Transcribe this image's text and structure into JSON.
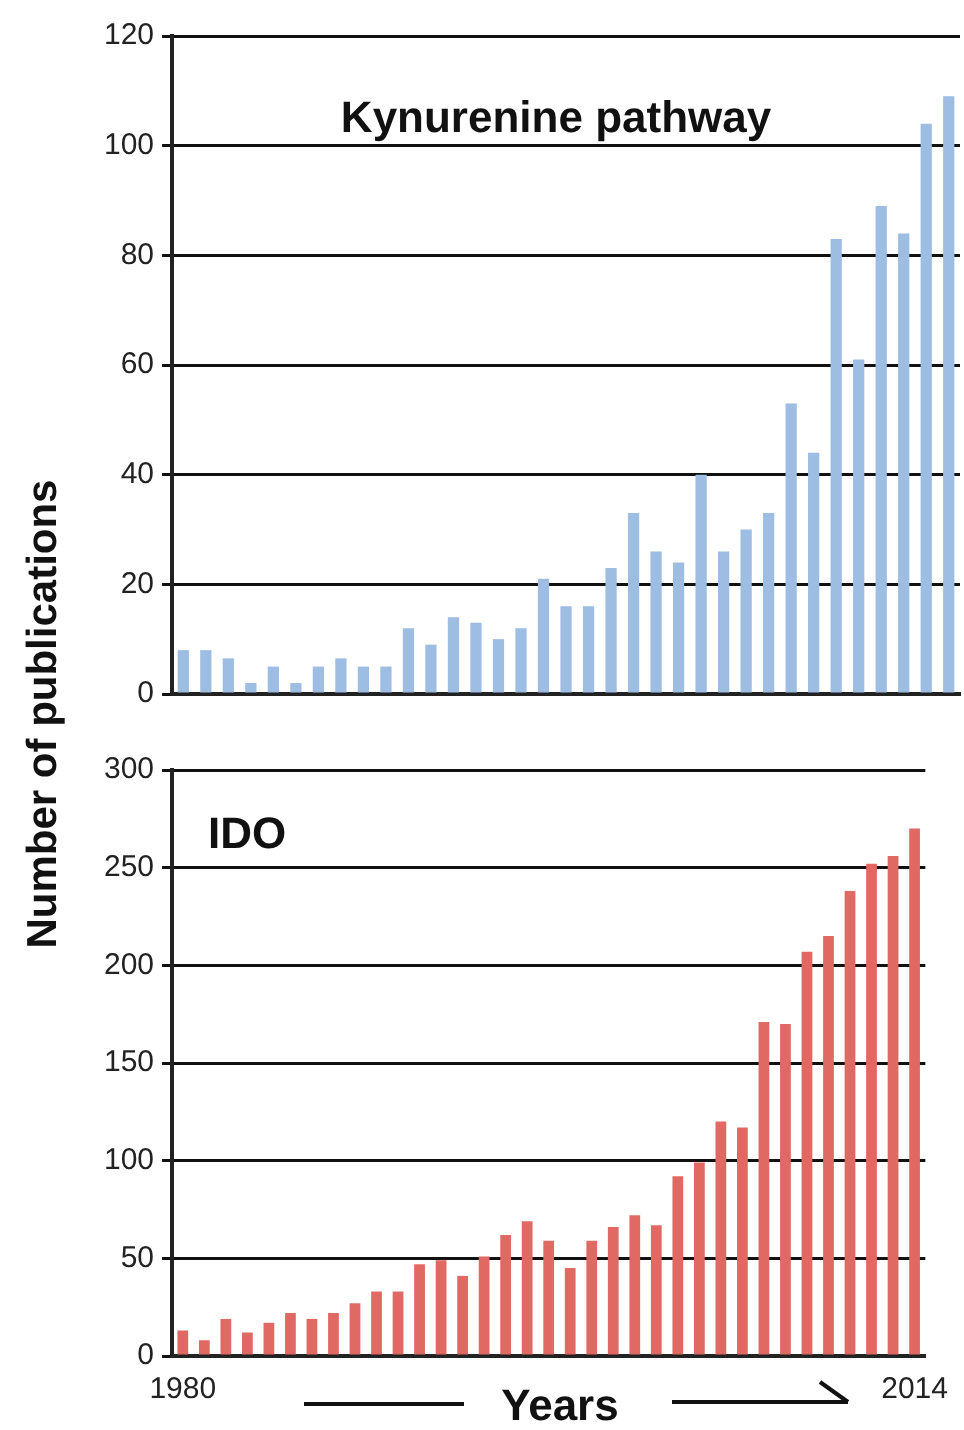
{
  "chart_data": [
    {
      "type": "bar",
      "title": "Kynurenine pathway",
      "ylabel": "Number of publications",
      "categories": [
        null,
        null,
        null,
        null,
        null,
        null,
        null,
        null,
        null,
        null,
        null,
        null,
        null,
        null,
        null,
        null,
        null,
        null,
        null,
        null,
        null,
        null,
        null,
        null,
        null,
        null,
        null,
        null,
        null,
        null,
        null,
        null,
        null,
        null,
        null
      ],
      "series": [
        {
          "color": "#9dbde3",
          "values": [
            8,
            8,
            6.5,
            2,
            5,
            2,
            5,
            6.5,
            5,
            5,
            12,
            9,
            14,
            13,
            10,
            12,
            21,
            16,
            16,
            23,
            33,
            26,
            24,
            40,
            26,
            30,
            33,
            53,
            44,
            83,
            61,
            89,
            84,
            104,
            109
          ]
        }
      ],
      "ylim": [
        0,
        120
      ],
      "yticks": [
        0,
        20,
        40,
        60,
        80,
        100,
        120
      ],
      "grid": "y",
      "tick_labels": "y"
    },
    {
      "type": "bar",
      "title": "IDO",
      "xlabel": "Years",
      "categories": [
        "1980",
        null,
        null,
        null,
        null,
        null,
        null,
        null,
        null,
        null,
        null,
        null,
        null,
        null,
        null,
        null,
        null,
        null,
        null,
        null,
        null,
        null,
        null,
        null,
        null,
        null,
        null,
        null,
        null,
        null,
        null,
        null,
        null,
        null,
        "2014"
      ],
      "series": [
        {
          "color": "#e06a63",
          "values": [
            13,
            8,
            19,
            12,
            17,
            22,
            19,
            22,
            27,
            33,
            33,
            47,
            49,
            41,
            51,
            62,
            69,
            59,
            45,
            59,
            66,
            72,
            67,
            92,
            99,
            120,
            117,
            171,
            170,
            207,
            215,
            238,
            252,
            256,
            270
          ]
        }
      ],
      "ylim": [
        0,
        300
      ],
      "yticks": [
        0,
        50,
        100,
        150,
        200,
        250,
        300
      ],
      "grid": "y"
    }
  ]
}
